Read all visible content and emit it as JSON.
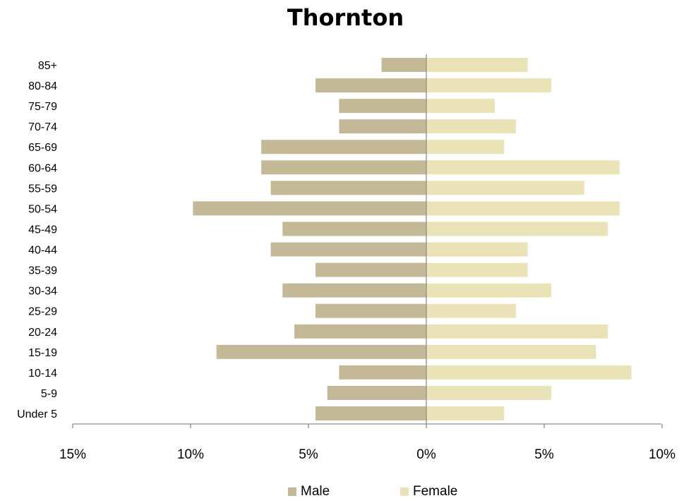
{
  "chart_data": {
    "type": "bar",
    "title": "Thornton",
    "orientation": "horizontal-population-pyramid",
    "categories": [
      "Under 5",
      "5-9",
      "10-14",
      "15-19",
      "20-24",
      "25-29",
      "30-34",
      "35-39",
      "40-44",
      "45-49",
      "50-54",
      "55-59",
      "60-64",
      "65-69",
      "70-74",
      "75-79",
      "80-84",
      "85+"
    ],
    "series": [
      {
        "name": "Male",
        "color": "#c4b996",
        "values": [
          4.7,
          4.2,
          3.7,
          8.9,
          5.6,
          4.7,
          6.1,
          4.7,
          6.6,
          6.1,
          9.9,
          6.6,
          7.0,
          7.0,
          3.7,
          3.7,
          4.7,
          1.9
        ]
      },
      {
        "name": "Female",
        "color": "#ebe3b8",
        "values": [
          3.3,
          5.3,
          8.7,
          7.2,
          7.7,
          3.8,
          5.3,
          4.3,
          4.3,
          7.7,
          8.2,
          6.7,
          8.2,
          3.3,
          3.8,
          2.9,
          5.3,
          4.3
        ]
      }
    ],
    "xlim": [
      -15,
      10
    ],
    "xticks": [
      -15,
      -10,
      -5,
      0,
      5,
      10
    ],
    "xtick_labels": [
      "15%",
      "10%",
      "5%",
      "0%",
      "5%",
      "10%"
    ],
    "legend_position": "bottom",
    "grid": false
  }
}
